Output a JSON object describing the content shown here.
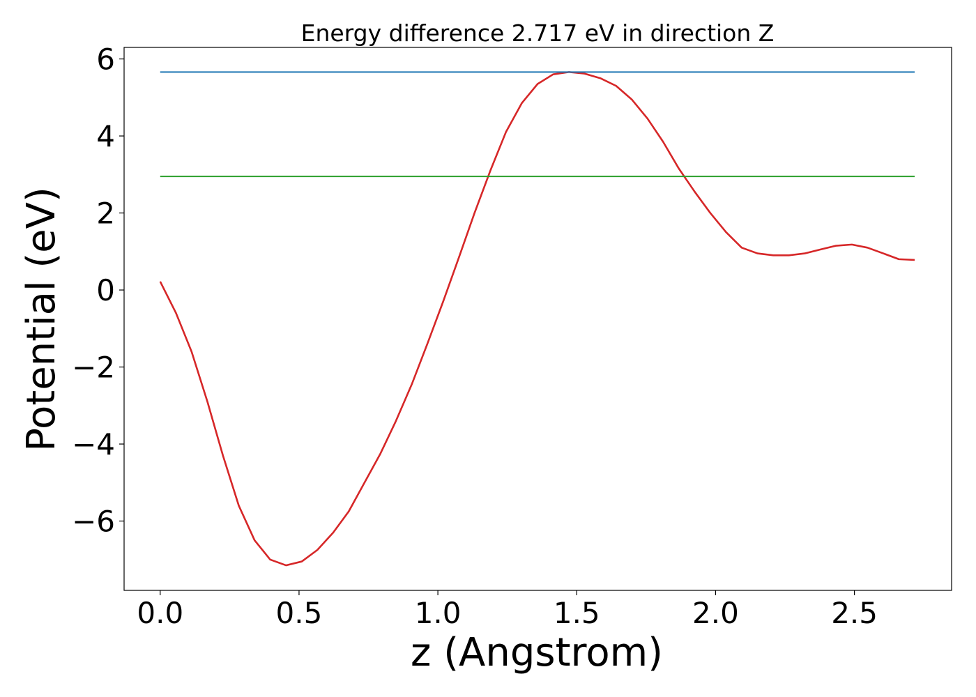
{
  "chart_data": {
    "type": "line",
    "title": "Energy difference 2.717 eV in direction Z",
    "xlabel": "z (Angstrom)",
    "ylabel": "Potential (eV)",
    "xlim": [
      -0.13,
      2.85
    ],
    "ylim": [
      -7.8,
      6.3
    ],
    "xticks": [
      0.0,
      0.5,
      1.0,
      1.5,
      2.0,
      2.5
    ],
    "xtick_labels": [
      "0.0",
      "0.5",
      "1.0",
      "1.5",
      "2.0",
      "2.5"
    ],
    "yticks": [
      -6,
      -4,
      -2,
      0,
      2,
      4,
      6
    ],
    "ytick_labels": [
      "−6",
      "−4",
      "−2",
      "0",
      "2",
      "4",
      "6"
    ],
    "grid": false,
    "series": [
      {
        "color": "#d62728",
        "x": [
          0.0,
          0.057,
          0.113,
          0.17,
          0.226,
          0.283,
          0.34,
          0.396,
          0.453,
          0.51,
          0.566,
          0.623,
          0.679,
          0.736,
          0.793,
          0.849,
          0.906,
          0.962,
          1.019,
          1.076,
          1.132,
          1.189,
          1.245,
          1.302,
          1.359,
          1.415,
          1.472,
          1.528,
          1.585,
          1.642,
          1.698,
          1.755,
          1.811,
          1.868,
          1.925,
          1.981,
          2.038,
          2.094,
          2.151,
          2.208,
          2.264,
          2.321,
          2.377,
          2.434,
          2.491,
          2.547,
          2.604,
          2.66,
          2.717
        ],
        "y": [
          0.22,
          -0.6,
          -1.6,
          -2.9,
          -4.3,
          -5.6,
          -6.5,
          -7.0,
          -7.15,
          -7.05,
          -6.75,
          -6.3,
          -5.75,
          -5.0,
          -4.25,
          -3.4,
          -2.45,
          -1.4,
          -0.3,
          0.85,
          2.0,
          3.1,
          4.1,
          4.85,
          5.35,
          5.6,
          5.66,
          5.62,
          5.5,
          5.3,
          4.95,
          4.45,
          3.85,
          3.15,
          2.55,
          2.0,
          1.5,
          1.1,
          0.95,
          0.9,
          0.9,
          0.95,
          1.05,
          1.15,
          1.18,
          1.1,
          0.95,
          0.8,
          0.78
        ]
      },
      {
        "color": "#1f77b4",
        "x": [
          0.0,
          2.717
        ],
        "y": [
          5.66,
          5.66
        ]
      },
      {
        "color": "#2ca02c",
        "x": [
          0.0,
          2.717
        ],
        "y": [
          2.95,
          2.95
        ]
      }
    ]
  }
}
